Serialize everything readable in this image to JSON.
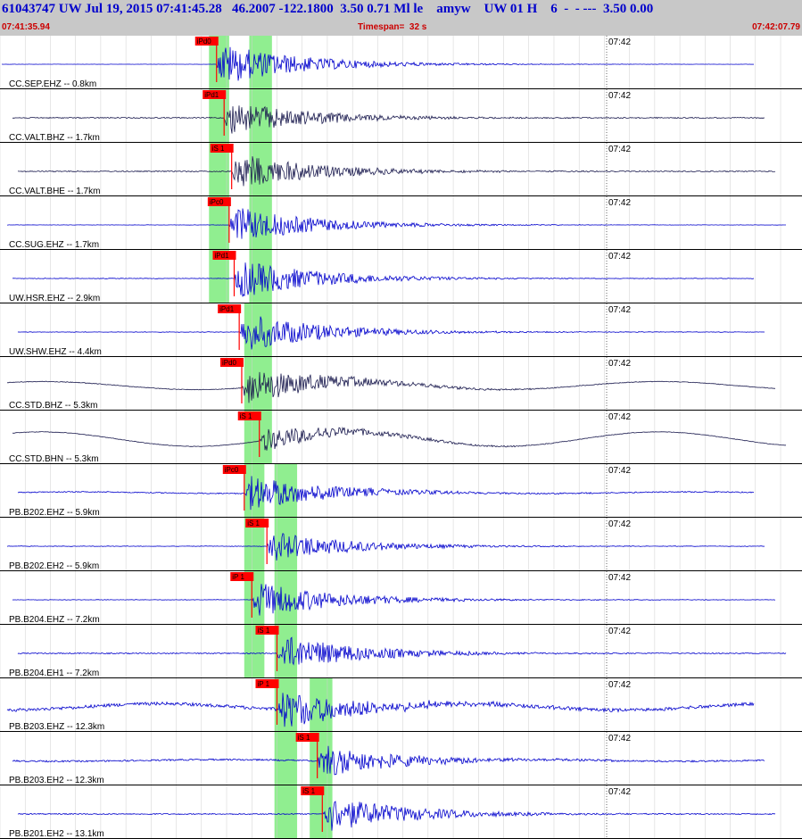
{
  "header": {
    "title": "61043747 UW Jul 19, 2015 07:41:45.28   46.2007 -122.1800  3.50 0.71 Ml le    amyw    UW 01 H    6  -  - ---  3.50 0.00",
    "start_time": "07:41:35.94",
    "timespan": "Timespan=  32 s",
    "end_time": "07:42:07.79"
  },
  "colors": {
    "header_bg": "#c8c8c8",
    "title": "#0000cc",
    "time_labels": "#cc0000",
    "trace_blue": "#0000cc",
    "trace_dark": "#1a1a4e",
    "pick_box": "#ff0000",
    "pick_window": "#90ee90"
  },
  "traces": [
    {
      "label": "CC.SEP.EHZ -- 0.8km",
      "tick_label": "07:42",
      "pick": "iPd0",
      "color": "#0000cc",
      "phase": "P",
      "onset_s": 8.6,
      "noise": 0.02,
      "amp": 0.95,
      "long_period": 0.0
    },
    {
      "label": "CC.VALT.BHZ -- 1.7km",
      "tick_label": "07:42",
      "pick": "iPd1",
      "color": "#1a1a4e",
      "phase": "P",
      "onset_s": 8.9,
      "noise": 0.1,
      "amp": 0.8,
      "long_period": 0.0
    },
    {
      "label": "CC.VALT.BHE -- 1.7km",
      "tick_label": "07:42",
      "pick": "iS 1",
      "color": "#1a1a4e",
      "phase": "S",
      "onset_s": 9.2,
      "noise": 0.1,
      "amp": 0.85,
      "long_period": 0.0
    },
    {
      "label": "CC.SUG.EHZ -- 1.7km",
      "tick_label": "07:42",
      "pick": "iPc0",
      "color": "#0000cc",
      "phase": "P",
      "onset_s": 9.1,
      "noise": 0.03,
      "amp": 0.85,
      "long_period": 0.0
    },
    {
      "label": "UW.HSR.EHZ -- 2.9km",
      "tick_label": "07:42",
      "pick": "iPd1",
      "color": "#0000cc",
      "phase": "P",
      "onset_s": 9.3,
      "noise": 0.05,
      "amp": 0.9,
      "long_period": 0.0
    },
    {
      "label": "UW.SHW.EHZ -- 4.4km",
      "tick_label": "07:42",
      "pick": "iPd1",
      "color": "#0000cc",
      "phase": "P",
      "onset_s": 9.5,
      "noise": 0.05,
      "amp": 0.9,
      "long_period": 0.0
    },
    {
      "label": "CC.STD.BHZ -- 5.3km",
      "tick_label": "07:42",
      "pick": "iPd0",
      "color": "#1a1a4e",
      "phase": "P",
      "onset_s": 9.6,
      "noise": 0.06,
      "amp": 0.85,
      "long_period": 0.25
    },
    {
      "label": "CC.STD.BHN -- 5.3km",
      "tick_label": "07:42",
      "pick": "iS 1",
      "color": "#1a1a4e",
      "phase": "S",
      "onset_s": 10.3,
      "noise": 0.05,
      "amp": 0.55,
      "long_period": 0.45
    },
    {
      "label": "PB.B202.EHZ -- 5.9km",
      "tick_label": "07:42",
      "pick": "iPc0",
      "color": "#0000cc",
      "phase": "P",
      "onset_s": 9.7,
      "noise": 0.1,
      "amp": 0.8,
      "long_period": 0.05
    },
    {
      "label": "PB.B202.EH2 -- 5.9km",
      "tick_label": "07:42",
      "pick": "iS 1",
      "color": "#0000cc",
      "phase": "S",
      "onset_s": 10.6,
      "noise": 0.05,
      "amp": 0.7,
      "long_period": 0.0
    },
    {
      "label": "PB.B204.EHZ -- 7.2km",
      "tick_label": "07:42",
      "pick": "iP 1",
      "color": "#0000cc",
      "phase": "P",
      "onset_s": 10.0,
      "noise": 0.05,
      "amp": 0.85,
      "long_period": 0.0
    },
    {
      "label": "PB.B204.EH1 -- 7.2km",
      "tick_label": "07:42",
      "pick": "iS 1",
      "color": "#0000cc",
      "phase": "S",
      "onset_s": 11.0,
      "noise": 0.1,
      "amp": 0.85,
      "long_period": 0.0
    },
    {
      "label": "PB.B203.EHZ -- 12.3km",
      "tick_label": "07:42",
      "pick": "iP 1",
      "color": "#0000cc",
      "phase": "P",
      "onset_s": 11.0,
      "noise": 0.3,
      "amp": 0.9,
      "long_period": 0.2
    },
    {
      "label": "PB.B203.EH2 -- 12.3km",
      "tick_label": "07:42",
      "pick": "iS 1",
      "color": "#0000cc",
      "phase": "S",
      "onset_s": 12.6,
      "noise": 0.15,
      "amp": 0.75,
      "long_period": 0.05
    },
    {
      "label": "PB.B201.EH2 -- 13.1km",
      "tick_label": "07:42",
      "pick": "iS 1",
      "color": "#0000cc",
      "phase": "S",
      "onset_s": 12.8,
      "noise": 0.1,
      "amp": 0.85,
      "long_period": 0.0
    }
  ],
  "pick_windows": [
    {
      "row_start": 0,
      "row_end": 5,
      "start_s": 8.3,
      "end_s": 9.1
    },
    {
      "row_start": 0,
      "row_end": 8,
      "start_s": 9.9,
      "end_s": 10.8
    },
    {
      "row_start": 5,
      "row_end": 12,
      "start_s": 9.7,
      "end_s": 10.5
    },
    {
      "row_start": 8,
      "row_end": 15,
      "start_s": 10.9,
      "end_s": 11.8
    },
    {
      "row_start": 12,
      "row_end": 15,
      "start_s": 12.3,
      "end_s": 13.2
    }
  ]
}
